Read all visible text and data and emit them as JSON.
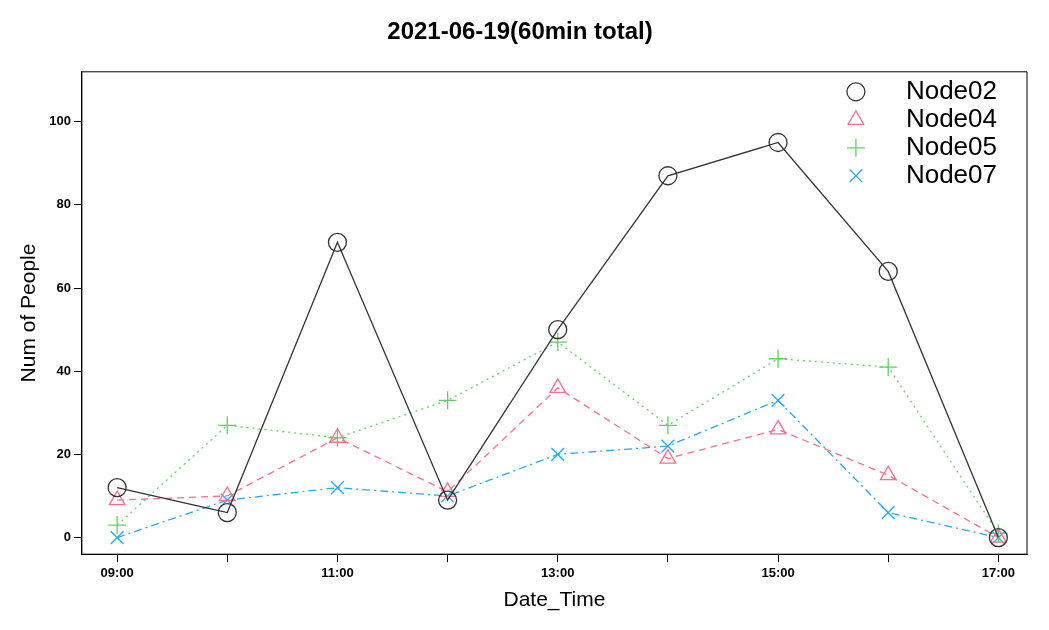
{
  "chart_data": {
    "type": "line",
    "title": "2021-06-19(60min total)",
    "xlabel": "Date_Time",
    "ylabel": "Num of People",
    "x": [
      9,
      10,
      11,
      12,
      13,
      14,
      15,
      16,
      17
    ],
    "xlim": [
      8.68,
      17.26
    ],
    "xticks": [
      {
        "value": 9,
        "label": "09:00"
      },
      {
        "value": 10,
        "label": null
      },
      {
        "value": 11,
        "label": "11:00"
      },
      {
        "value": 12,
        "label": null
      },
      {
        "value": 13,
        "label": "13:00"
      },
      {
        "value": 14,
        "label": null
      },
      {
        "value": 15,
        "label": "15:00"
      },
      {
        "value": 16,
        "label": null
      },
      {
        "value": 17,
        "label": "17:00"
      }
    ],
    "ylim": [
      -4,
      112
    ],
    "yticks": [
      0,
      20,
      40,
      60,
      80,
      100
    ],
    "grid": false,
    "legend": "top right",
    "series": [
      {
        "name": "Node02",
        "color": "#333333",
        "marker": "circle",
        "line_style": "solid",
        "values": [
          12,
          6,
          71,
          9,
          50,
          87,
          95,
          64,
          0
        ]
      },
      {
        "name": "Node04",
        "color": "#f5708a",
        "marker": "triangle",
        "line_style": "dashed",
        "values": [
          9,
          10,
          24,
          11,
          36,
          19,
          26,
          15,
          0
        ]
      },
      {
        "name": "Node05",
        "color": "#5ed35e",
        "marker": "cross",
        "line_style": "dotted",
        "values": [
          3,
          27,
          24,
          33,
          47,
          27,
          43,
          41,
          1
        ]
      },
      {
        "name": "Node07",
        "color": "#22aaee",
        "marker": "x",
        "line_style": "dashdot",
        "values": [
          0,
          9,
          12,
          10,
          20,
          22,
          33,
          6,
          0
        ]
      }
    ]
  }
}
